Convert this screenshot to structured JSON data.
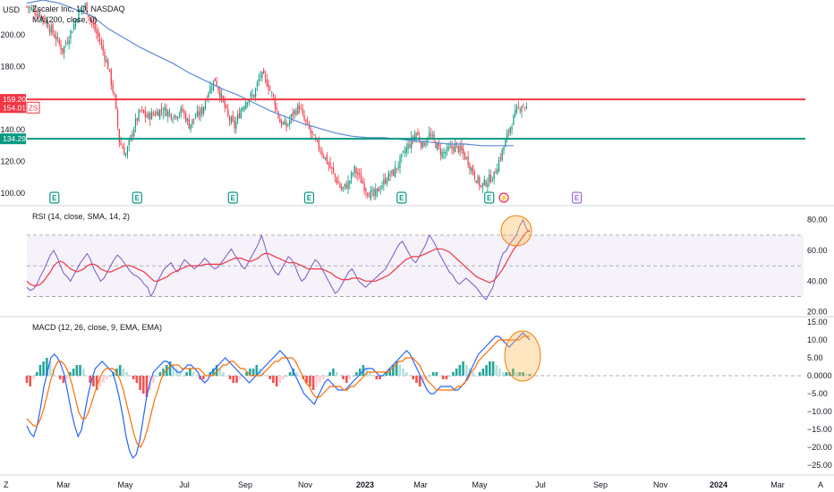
{
  "chart_data": [
    {
      "type": "candlestick",
      "title": "Zscaler Inc, 1D, NASDAQ",
      "currency": "USD",
      "indicator_label": "MA (200, close, 0)",
      "y_ticks": [
        100,
        120,
        140,
        160,
        180,
        200
      ],
      "ylim": [
        92,
        222
      ],
      "x_ticks": [
        "Mar",
        "May",
        "Jul",
        "Sep",
        "Nov",
        "2023",
        "Mar",
        "May",
        "Jul",
        "Sep",
        "Nov",
        "2024",
        "Mar"
      ],
      "horizontal_lines": [
        {
          "value": 159.2,
          "label": "159.20",
          "color": "#f23645"
        },
        {
          "value": 134.29,
          "label": "134.29",
          "color": "#089981"
        }
      ],
      "last_price": {
        "value": "154.01",
        "symbol": "ZS",
        "color": "#f23645"
      },
      "close_path": [
        [
          0,
          218
        ],
        [
          8,
          213
        ],
        [
          12,
          208
        ],
        [
          18,
          198
        ],
        [
          22,
          190
        ],
        [
          28,
          204
        ],
        [
          32,
          214
        ],
        [
          36,
          218
        ],
        [
          40,
          208
        ],
        [
          45,
          196
        ],
        [
          50,
          180
        ],
        [
          54,
          160
        ],
        [
          57,
          133
        ],
        [
          61,
          124
        ],
        [
          66,
          142
        ],
        [
          70,
          152
        ],
        [
          74,
          148
        ],
        [
          78,
          150
        ],
        [
          84,
          153
        ],
        [
          90,
          149
        ],
        [
          96,
          152
        ],
        [
          100,
          143
        ],
        [
          104,
          148
        ],
        [
          108,
          152
        ],
        [
          112,
          165
        ],
        [
          116,
          172
        ],
        [
          120,
          160
        ],
        [
          124,
          148
        ],
        [
          128,
          142
        ],
        [
          132,
          153
        ],
        [
          136,
          160
        ],
        [
          140,
          162
        ],
        [
          144,
          175
        ],
        [
          148,
          170
        ],
        [
          152,
          160
        ],
        [
          156,
          145
        ],
        [
          160,
          142
        ],
        [
          164,
          150
        ],
        [
          168,
          155
        ],
        [
          170,
          148
        ],
        [
          174,
          140
        ],
        [
          178,
          132
        ],
        [
          182,
          126
        ],
        [
          186,
          118
        ],
        [
          190,
          110
        ],
        [
          194,
          102
        ],
        [
          198,
          106
        ],
        [
          202,
          115
        ],
        [
          206,
          108
        ],
        [
          210,
          101
        ],
        [
          214,
          98
        ],
        [
          218,
          104
        ],
        [
          222,
          110
        ],
        [
          226,
          113
        ],
        [
          230,
          120
        ],
        [
          234,
          128
        ],
        [
          237,
          133
        ],
        [
          240,
          138
        ],
        [
          244,
          130
        ],
        [
          248,
          137
        ],
        [
          252,
          131
        ],
        [
          256,
          125
        ],
        [
          260,
          127
        ],
        [
          264,
          130
        ],
        [
          268,
          126
        ],
        [
          272,
          120
        ],
        [
          276,
          111
        ],
        [
          280,
          104
        ],
        [
          284,
          108
        ],
        [
          288,
          111
        ],
        [
          290,
          118
        ],
        [
          293,
          126
        ],
        [
          296,
          136
        ],
        [
          299,
          145
        ],
        [
          302,
          152
        ],
        [
          305,
          156
        ],
        [
          308,
          154
        ]
      ],
      "ma_path": [
        [
          0,
          220
        ],
        [
          10,
          222
        ],
        [
          20,
          220
        ],
        [
          30,
          216
        ],
        [
          40,
          212
        ],
        [
          50,
          204
        ],
        [
          60,
          198
        ],
        [
          70,
          192
        ],
        [
          80,
          187
        ],
        [
          90,
          182
        ],
        [
          100,
          176
        ],
        [
          110,
          171
        ],
        [
          120,
          166
        ],
        [
          130,
          162
        ],
        [
          140,
          157
        ],
        [
          150,
          152
        ],
        [
          160,
          148
        ],
        [
          170,
          144
        ],
        [
          180,
          141
        ],
        [
          190,
          138
        ],
        [
          200,
          136
        ],
        [
          210,
          135
        ],
        [
          220,
          135
        ],
        [
          230,
          134
        ],
        [
          240,
          133
        ],
        [
          250,
          132
        ],
        [
          260,
          131
        ],
        [
          270,
          131
        ],
        [
          280,
          130
        ],
        [
          290,
          130
        ],
        [
          300,
          130
        ]
      ],
      "earnings_markers": [
        {
          "day": 17,
          "label": "E"
        },
        {
          "day": 68,
          "label": "E"
        },
        {
          "day": 127,
          "label": "E"
        },
        {
          "day": 174,
          "label": "E"
        },
        {
          "day": 231,
          "label": "E"
        },
        {
          "day": 285,
          "label": "E"
        },
        {
          "day": 294,
          "label": "⚡"
        },
        {
          "day": 339,
          "label": "E"
        }
      ]
    },
    {
      "type": "line",
      "title": "RSI (14, close, SMA, 14, 2)",
      "y_ticks": [
        20,
        40,
        60,
        80
      ],
      "y_tick_labels": [
        "20.00",
        "40.00",
        "60.00",
        "80.00"
      ],
      "ylim": [
        18,
        88
      ],
      "band": [
        30,
        70
      ],
      "mid": 50,
      "series": [
        {
          "color": "#7e57c2",
          "values": [
            36,
            34,
            35,
            38,
            43,
            47,
            52,
            57,
            60,
            56,
            50,
            45,
            43,
            40,
            44,
            48,
            52,
            55,
            58,
            54,
            48,
            44,
            40,
            42,
            46,
            50,
            54,
            57,
            55,
            52,
            49,
            46,
            44,
            43,
            41,
            38,
            36,
            30,
            34,
            40,
            44,
            48,
            50,
            52,
            48,
            46,
            50,
            54,
            52,
            50,
            48,
            50,
            52,
            55,
            53,
            50,
            48,
            49,
            52,
            55,
            58,
            61,
            57,
            54,
            50,
            48,
            52,
            56,
            60,
            64,
            70,
            63,
            55,
            50,
            46,
            44,
            48,
            52,
            56,
            54,
            50,
            44,
            40,
            42,
            46,
            50,
            54,
            52,
            48,
            44,
            40,
            36,
            32,
            34,
            38,
            42,
            46,
            48,
            44,
            40,
            38,
            36,
            38,
            40,
            42,
            44,
            46,
            48,
            52,
            56,
            60,
            64,
            66,
            62,
            58,
            54,
            52,
            56,
            60,
            64,
            70,
            67,
            63,
            58,
            54,
            50,
            46,
            44,
            40,
            38,
            40,
            42,
            40,
            38,
            36,
            33,
            30,
            28,
            32,
            36,
            44,
            52,
            58,
            60,
            64,
            67,
            70,
            76,
            80,
            74,
            72
          ]
        },
        {
          "color": "#f23645",
          "values": [
            40,
            38,
            37,
            37,
            38,
            40,
            43,
            46,
            50,
            52,
            53,
            52,
            50,
            48,
            47,
            46,
            47,
            48,
            50,
            51,
            51,
            50,
            48,
            47,
            46,
            46,
            47,
            48,
            49,
            50,
            50,
            50,
            49,
            48,
            47,
            46,
            44,
            42,
            40,
            40,
            41,
            42,
            43,
            45,
            46,
            47,
            48,
            49,
            50,
            50,
            50,
            50,
            50,
            51,
            51,
            51,
            51,
            51,
            51,
            52,
            53,
            54,
            55,
            55,
            55,
            54,
            53,
            53,
            54,
            55,
            57,
            58,
            58,
            57,
            56,
            55,
            54,
            53,
            52,
            52,
            52,
            51,
            50,
            49,
            48,
            48,
            48,
            48,
            48,
            47,
            46,
            45,
            43,
            42,
            41,
            41,
            41,
            42,
            42,
            42,
            41,
            40,
            40,
            40,
            40,
            41,
            42,
            43,
            44,
            46,
            48,
            50,
            52,
            54,
            55,
            56,
            56,
            56,
            57,
            58,
            59,
            60,
            61,
            61,
            61,
            60,
            59,
            57,
            55,
            53,
            51,
            49,
            47,
            45,
            43,
            42,
            41,
            40,
            39,
            40,
            42,
            45,
            48,
            52,
            56,
            60,
            63,
            66,
            69,
            72,
            73
          ]
        }
      ]
    },
    {
      "type": "bar+line",
      "title": "MACD (12, 26, close, 9, EMA, EMA)",
      "y_ticks": [
        15,
        10,
        5,
        0,
        -5,
        -10,
        -15,
        -20,
        -25
      ],
      "y_tick_labels": [
        "15.00",
        "10.00",
        "5.00",
        "0.0000",
        "−5.00",
        "−10.00",
        "−15.00",
        "−20.00",
        "−25.00"
      ],
      "ylim": [
        -27,
        16
      ],
      "histogram": [
        -2,
        -3,
        -1,
        1,
        3,
        4,
        5,
        4,
        2,
        0,
        -1,
        -2,
        -1,
        1,
        2,
        3,
        3,
        2,
        0,
        -2,
        -3,
        -4,
        -3,
        -2,
        -1,
        0,
        1,
        2,
        3,
        2,
        1,
        0,
        -1,
        -2,
        -4,
        -5,
        -6,
        -4,
        -2,
        0,
        1,
        2,
        3,
        4,
        3,
        2,
        1,
        0,
        1,
        2,
        1,
        0,
        -1,
        -1,
        0,
        1,
        2,
        3,
        2,
        1,
        0,
        -1,
        -2,
        -2,
        -1,
        0,
        1,
        2,
        2,
        3,
        2,
        1,
        0,
        -1,
        -2,
        -3,
        -2,
        -1,
        0,
        1,
        2,
        1,
        0,
        -1,
        -2,
        -3,
        -4,
        -3,
        -2,
        -1,
        0,
        1,
        2,
        1,
        0,
        -1,
        -2,
        -1,
        0,
        1,
        2,
        3,
        2,
        1,
        0,
        -1,
        -1,
        0,
        1,
        2,
        3,
        4,
        3,
        2,
        1,
        0,
        -1,
        -2,
        -3,
        -2,
        -1,
        0,
        1,
        1,
        0,
        -1,
        -1,
        0,
        1,
        2,
        3,
        4,
        3,
        2,
        1,
        0,
        1,
        2,
        3,
        4,
        4,
        3,
        2,
        1,
        1,
        1,
        2,
        1,
        1,
        1,
        0.5,
        0.5
      ],
      "series": [
        {
          "color": "#2962ff",
          "values": [
            -14,
            -16,
            -17,
            -14,
            -9,
            -3,
            1,
            5,
            6,
            5,
            3,
            0,
            -5,
            -10,
            -14,
            -17,
            -15,
            -10,
            -5,
            -1,
            2,
            3,
            4,
            3,
            2,
            1,
            -2,
            -6,
            -11,
            -17,
            -21,
            -23,
            -22,
            -18,
            -12,
            -6,
            -2,
            1,
            2,
            3,
            4,
            4,
            3,
            2,
            1,
            1,
            2,
            3,
            3,
            2,
            1,
            -1,
            -2,
            -1,
            1,
            2,
            3,
            4,
            5,
            4,
            3,
            2,
            1,
            0,
            -1,
            -2,
            -1,
            0,
            1,
            2,
            3,
            4,
            5,
            6,
            7,
            6,
            5,
            3,
            1,
            -1,
            -3,
            -5,
            -6,
            -7,
            -8,
            -6,
            -4,
            -2,
            -1,
            -2,
            -3,
            -4,
            -4,
            -4,
            -3,
            -2,
            -1,
            0,
            1,
            2,
            2,
            2,
            1,
            0,
            0,
            1,
            2,
            3,
            4,
            5,
            6,
            7,
            6,
            4,
            2,
            0,
            -2,
            -4,
            -5,
            -5,
            -4,
            -3,
            -3,
            -3,
            -3,
            -4,
            -4,
            -3,
            -2,
            0,
            2,
            4,
            6,
            7,
            8,
            9,
            10,
            11,
            11,
            10,
            9,
            8,
            9,
            10,
            11,
            12,
            11,
            10
          ]
        },
        {
          "color": "#ff6d00",
          "values": [
            -12,
            -13,
            -14,
            -14,
            -12,
            -9,
            -5,
            -1,
            2,
            4,
            4,
            3,
            1,
            -2,
            -6,
            -10,
            -12,
            -12,
            -10,
            -7,
            -4,
            -1,
            1,
            2,
            2,
            2,
            1,
            -1,
            -4,
            -8,
            -12,
            -16,
            -19,
            -20,
            -18,
            -15,
            -11,
            -7,
            -4,
            -1,
            1,
            2,
            3,
            3,
            3,
            2,
            2,
            2,
            2,
            2,
            2,
            1,
            0,
            0,
            0,
            1,
            2,
            3,
            3,
            4,
            4,
            3,
            2,
            2,
            1,
            0,
            0,
            0,
            0,
            1,
            2,
            3,
            4,
            4,
            5,
            5,
            5,
            5,
            4,
            2,
            0,
            -2,
            -3,
            -5,
            -6,
            -6,
            -5,
            -4,
            -3,
            -3,
            -3,
            -3,
            -4,
            -4,
            -3,
            -3,
            -2,
            -1,
            0,
            1,
            1,
            1,
            1,
            1,
            1,
            1,
            2,
            3,
            4,
            4,
            5,
            5,
            5,
            4,
            3,
            1,
            -1,
            -2,
            -3,
            -4,
            -4,
            -4,
            -4,
            -4,
            -4,
            -3,
            -3,
            -2,
            -1,
            1,
            2,
            4,
            5,
            6,
            7,
            8,
            9,
            10,
            10,
            10,
            10,
            10,
            10,
            10,
            11,
            11,
            11
          ]
        }
      ]
    }
  ],
  "x_axis_marker": "Z",
  "x_axis_end_icon": "A"
}
